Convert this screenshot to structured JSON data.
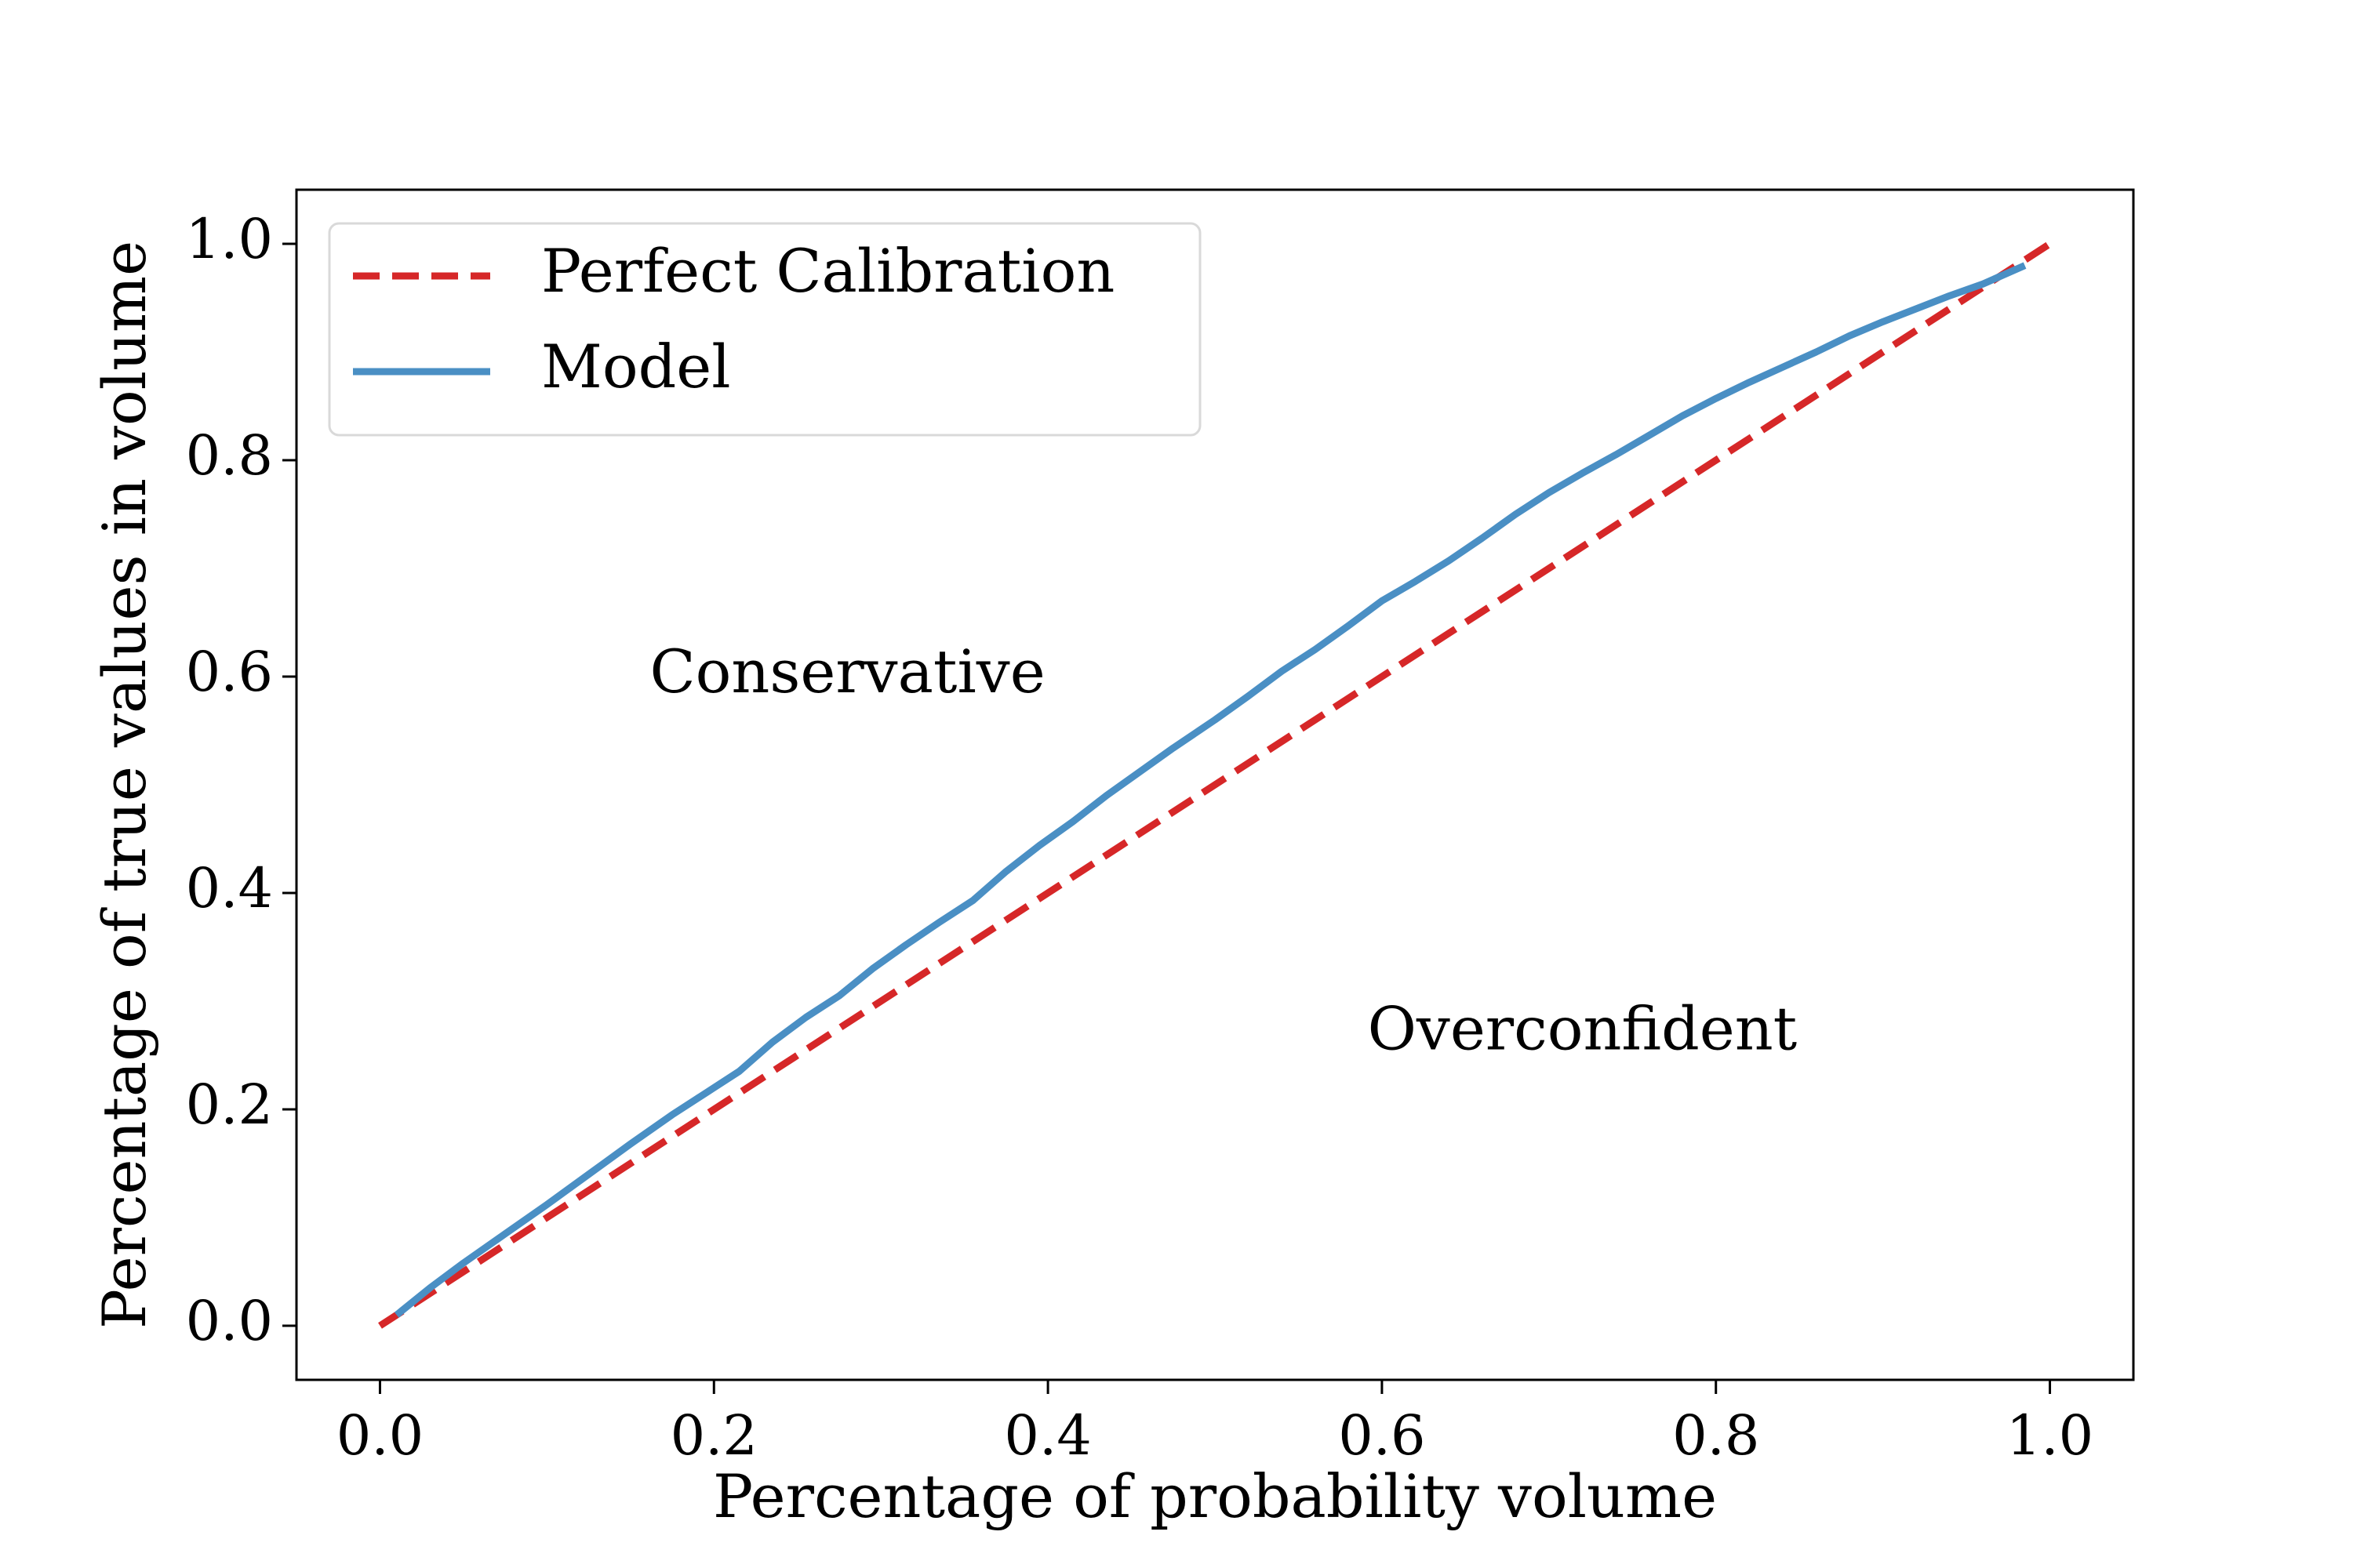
{
  "chart_data": {
    "type": "line",
    "xlabel": "Percentage of probability volume",
    "ylabel": "Percentage of true values in volume",
    "xlim": [
      -0.05,
      1.05
    ],
    "ylim": [
      -0.05,
      1.05
    ],
    "xticks": [
      "0.0",
      "0.2",
      "0.4",
      "0.6",
      "0.8",
      "1.0"
    ],
    "yticks": [
      "0.0",
      "0.2",
      "0.4",
      "0.6",
      "0.8",
      "1.0"
    ],
    "xtick_values": [
      0.0,
      0.2,
      0.4,
      0.6,
      0.8,
      1.0
    ],
    "ytick_values": [
      0.0,
      0.2,
      0.4,
      0.6,
      0.8,
      1.0
    ],
    "grid": false,
    "legend_position": "upper-left",
    "series": [
      {
        "name": "Perfect Calibration",
        "style": "dashed",
        "color": "#d62728",
        "x": [
          0.0,
          1.0
        ],
        "y": [
          0.0,
          1.0
        ]
      },
      {
        "name": "Model",
        "style": "solid",
        "color": "#4a8fc4",
        "x": [
          0.01,
          0.03,
          0.05,
          0.075,
          0.1,
          0.125,
          0.15,
          0.175,
          0.2,
          0.215,
          0.235,
          0.255,
          0.275,
          0.295,
          0.315,
          0.335,
          0.355,
          0.375,
          0.395,
          0.415,
          0.435,
          0.455,
          0.475,
          0.5,
          0.52,
          0.54,
          0.56,
          0.58,
          0.6,
          0.62,
          0.64,
          0.66,
          0.68,
          0.7,
          0.72,
          0.74,
          0.76,
          0.78,
          0.8,
          0.82,
          0.84,
          0.86,
          0.88,
          0.9,
          0.92,
          0.94,
          0.96,
          0.985
        ],
        "y": [
          0.01,
          0.035,
          0.058,
          0.085,
          0.112,
          0.14,
          0.168,
          0.195,
          0.22,
          0.235,
          0.262,
          0.285,
          0.305,
          0.33,
          0.352,
          0.373,
          0.393,
          0.42,
          0.444,
          0.466,
          0.49,
          0.512,
          0.534,
          0.56,
          0.582,
          0.605,
          0.625,
          0.647,
          0.67,
          0.688,
          0.707,
          0.728,
          0.75,
          0.77,
          0.788,
          0.805,
          0.823,
          0.841,
          0.857,
          0.872,
          0.886,
          0.9,
          0.915,
          0.928,
          0.94,
          0.952,
          0.963,
          0.98
        ]
      }
    ],
    "annotations": [
      {
        "text": "Conservative",
        "x": 0.28,
        "y": 0.6
      },
      {
        "text": "Overconfident",
        "x": 0.72,
        "y": 0.27
      }
    ]
  }
}
